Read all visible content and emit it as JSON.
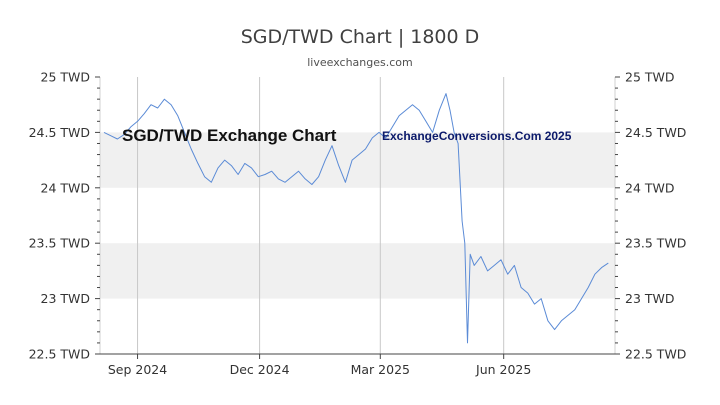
{
  "header": {
    "title": "SGD/TWD Chart | 1800 D",
    "subtitle": "liveexchanges.com"
  },
  "watermarks": {
    "left": "SGD/TWD Exchange Chart",
    "right": "ExchangeConversions.Com 2025"
  },
  "colors": {
    "line": "#5b8bd6",
    "band": "#f0f0f0",
    "grid": "#c8c8c8",
    "axis": "#444444"
  },
  "chart_data": {
    "type": "line",
    "title": "SGD/TWD Chart | 1800 D",
    "xlabel": "",
    "ylabel": "",
    "ylim": [
      22.5,
      25
    ],
    "y_tick_labels": [
      "22.5 TWD",
      "23 TWD",
      "23.5 TWD",
      "24 TWD",
      "24.5 TWD",
      "25 TWD"
    ],
    "y_ticks": [
      22.5,
      23,
      23.5,
      24,
      24.5,
      25
    ],
    "x_tick_labels": [
      "Sep 2024",
      "Dec 2024",
      "Mar 2025",
      "Jun 2025"
    ],
    "x_tick_dates": [
      "2024-09-01",
      "2024-12-01",
      "2025-03-01",
      "2025-06-01"
    ],
    "xlim": [
      "2024-08-04",
      "2025-08-23"
    ],
    "grid": "vertical lines at month ticks, alternating horizontal bands",
    "legend": "none",
    "series": [
      {
        "points": [
          [
            "2024-08-07",
            24.5
          ],
          [
            "2024-08-12",
            24.47
          ],
          [
            "2024-08-17",
            24.44
          ],
          [
            "2024-08-22",
            24.48
          ],
          [
            "2024-08-27",
            24.55
          ],
          [
            "2024-09-01",
            24.6
          ],
          [
            "2024-09-06",
            24.67
          ],
          [
            "2024-09-11",
            24.75
          ],
          [
            "2024-09-16",
            24.72
          ],
          [
            "2024-09-21",
            24.8
          ],
          [
            "2024-09-26",
            24.75
          ],
          [
            "2024-10-01",
            24.65
          ],
          [
            "2024-10-06",
            24.5
          ],
          [
            "2024-10-11",
            24.35
          ],
          [
            "2024-10-16",
            24.22
          ],
          [
            "2024-10-21",
            24.1
          ],
          [
            "2024-10-26",
            24.05
          ],
          [
            "2024-10-31",
            24.18
          ],
          [
            "2024-11-05",
            24.25
          ],
          [
            "2024-11-10",
            24.2
          ],
          [
            "2024-11-15",
            24.12
          ],
          [
            "2024-11-20",
            24.22
          ],
          [
            "2024-11-25",
            24.18
          ],
          [
            "2024-11-30",
            24.1
          ],
          [
            "2024-12-05",
            24.12
          ],
          [
            "2024-12-10",
            24.15
          ],
          [
            "2024-12-15",
            24.08
          ],
          [
            "2024-12-20",
            24.05
          ],
          [
            "2024-12-25",
            24.1
          ],
          [
            "2024-12-30",
            24.15
          ],
          [
            "2025-01-04",
            24.08
          ],
          [
            "2025-01-09",
            24.03
          ],
          [
            "2025-01-14",
            24.1
          ],
          [
            "2025-01-19",
            24.25
          ],
          [
            "2025-01-24",
            24.38
          ],
          [
            "2025-01-29",
            24.2
          ],
          [
            "2025-02-03",
            24.05
          ],
          [
            "2025-02-08",
            24.25
          ],
          [
            "2025-02-13",
            24.3
          ],
          [
            "2025-02-18",
            24.35
          ],
          [
            "2025-02-23",
            24.45
          ],
          [
            "2025-02-28",
            24.5
          ],
          [
            "2025-03-05",
            24.45
          ],
          [
            "2025-03-10",
            24.55
          ],
          [
            "2025-03-15",
            24.65
          ],
          [
            "2025-03-20",
            24.7
          ],
          [
            "2025-03-25",
            24.75
          ],
          [
            "2025-03-30",
            24.7
          ],
          [
            "2025-04-04",
            24.6
          ],
          [
            "2025-04-09",
            24.5
          ],
          [
            "2025-04-14",
            24.7
          ],
          [
            "2025-04-19",
            24.85
          ],
          [
            "2025-04-22",
            24.7
          ],
          [
            "2025-04-25",
            24.5
          ],
          [
            "2025-04-28",
            24.4
          ],
          [
            "2025-05-01",
            23.7
          ],
          [
            "2025-05-03",
            23.5
          ],
          [
            "2025-05-05",
            22.6
          ],
          [
            "2025-05-07",
            23.4
          ],
          [
            "2025-05-10",
            23.3
          ],
          [
            "2025-05-15",
            23.38
          ],
          [
            "2025-05-20",
            23.25
          ],
          [
            "2025-05-25",
            23.3
          ],
          [
            "2025-05-30",
            23.35
          ],
          [
            "2025-06-04",
            23.22
          ],
          [
            "2025-06-09",
            23.3
          ],
          [
            "2025-06-14",
            23.1
          ],
          [
            "2025-06-19",
            23.05
          ],
          [
            "2025-06-24",
            22.95
          ],
          [
            "2025-06-29",
            23.0
          ],
          [
            "2025-07-04",
            22.8
          ],
          [
            "2025-07-09",
            22.72
          ],
          [
            "2025-07-14",
            22.8
          ],
          [
            "2025-07-19",
            22.85
          ],
          [
            "2025-07-24",
            22.9
          ],
          [
            "2025-07-29",
            23.0
          ],
          [
            "2025-08-03",
            23.1
          ],
          [
            "2025-08-08",
            23.22
          ],
          [
            "2025-08-13",
            23.28
          ],
          [
            "2025-08-18",
            23.32
          ]
        ]
      }
    ]
  }
}
